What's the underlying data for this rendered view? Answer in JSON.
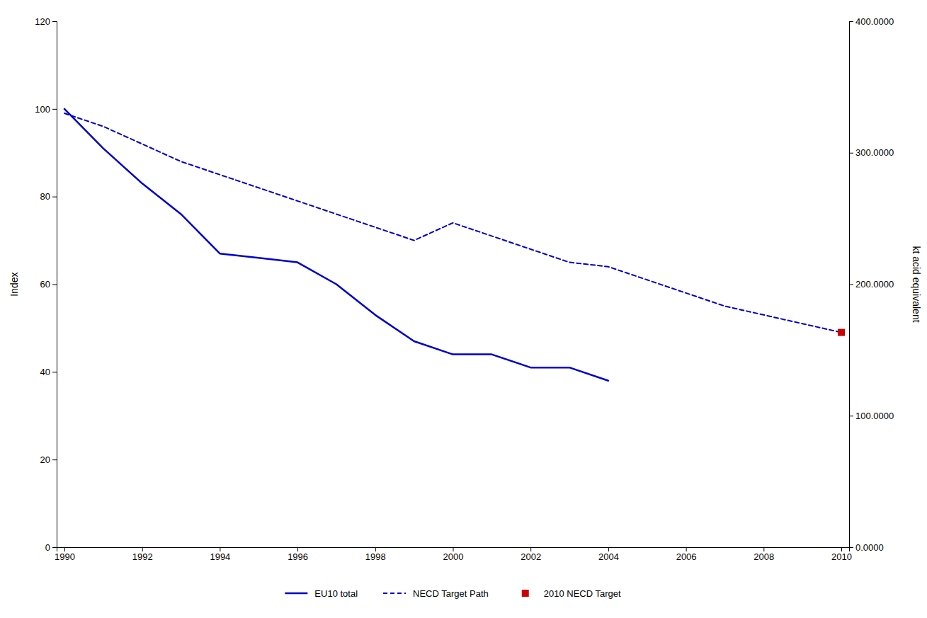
{
  "chart_data": {
    "type": "line",
    "ylabel": "Index",
    "y2label": "kt acid equivalent",
    "series": [
      {
        "name": "EU10 total",
        "color": "#0000CC",
        "line_style": "solid",
        "x": [
          1990,
          1991,
          1992,
          1993,
          1994,
          1995,
          1996,
          1997,
          1998,
          1999,
          2000,
          2001,
          2002,
          2003,
          2004
        ],
        "values": [
          100,
          91,
          83,
          76,
          67,
          66,
          65,
          60,
          53,
          47,
          44,
          44,
          41,
          41,
          38
        ]
      },
      {
        "name": "NECD Target Path",
        "color": "#0000CC",
        "line_style": "dashed",
        "x": [
          1990,
          1991,
          1992,
          1993,
          1994,
          1995,
          1996,
          1997,
          1998,
          1999,
          2000,
          2001,
          2002,
          2003,
          2004,
          2005,
          2006,
          2007,
          2008,
          2009,
          2010
        ],
        "values": [
          99,
          96,
          92,
          88,
          85,
          82,
          79,
          76,
          73,
          70,
          74,
          71,
          68,
          65,
          64,
          61,
          58,
          55,
          53,
          51,
          49
        ]
      },
      {
        "name": "2010 NECD Target",
        "type": "scatter",
        "marker": "square",
        "color": "#CC0000",
        "x": [
          2010
        ],
        "values": [
          49
        ]
      }
    ],
    "xlim": [
      1989.8,
      2010.2
    ],
    "xticks": [
      1990,
      1992,
      1994,
      1996,
      1998,
      2000,
      2002,
      2004,
      2006,
      2008,
      2010
    ],
    "ylim": [
      0,
      120
    ],
    "yticks": [
      0,
      20,
      40,
      60,
      80,
      100,
      120
    ],
    "y2lim": [
      0,
      400
    ],
    "y2ticks": [
      {
        "value": 0.0,
        "label": "0.0000"
      },
      {
        "value": 100.0,
        "label": "100.0000"
      },
      {
        "value": 200.0,
        "label": "200.0000"
      },
      {
        "value": 300.0,
        "label": "300.0000"
      },
      {
        "value": 400.0,
        "label": "400.0000"
      }
    ],
    "grid": false,
    "legend": "bottom"
  }
}
